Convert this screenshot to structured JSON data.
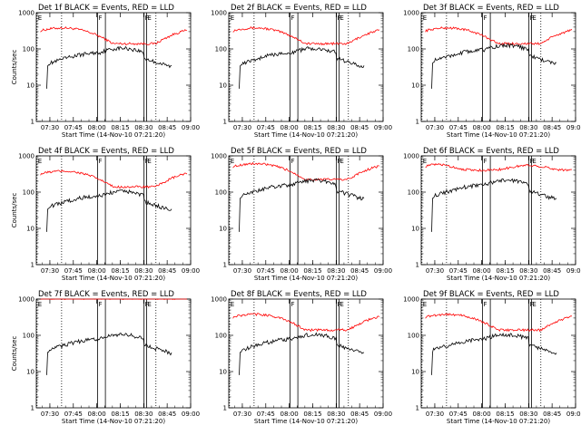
{
  "chart_data": [
    {
      "type": "line",
      "title": "Det 1f BLACK = Events, RED = LLD",
      "variant": 0,
      "xlabel": "Start Time (14-Nov-10 07:21:20)",
      "ylabel": "Counts/sec"
    },
    {
      "type": "line",
      "title": "Det 2f BLACK = Events, RED = LLD",
      "variant": 1,
      "xlabel": "Start Time (14-Nov-10 07:21:20)",
      "ylabel": ""
    },
    {
      "type": "line",
      "title": "Det 3f BLACK = Events, RED = LLD",
      "variant": 2,
      "xlabel": "Start Time (14-Nov-10 07:21:20)",
      "ylabel": ""
    },
    {
      "type": "line",
      "title": "Det 4f BLACK = Events, RED = LLD",
      "variant": 3,
      "xlabel": "Start Time (14-Nov-10 07:21:20)",
      "ylabel": "Counts/sec"
    },
    {
      "type": "line",
      "title": "Det 5f BLACK = Events, RED = LLD",
      "variant": 4,
      "xlabel": "Start Time (14-Nov-10 07:21:20)",
      "ylabel": ""
    },
    {
      "type": "line",
      "title": "Det 6f BLACK = Events, RED = LLD",
      "variant": 5,
      "xlabel": "Start Time (14-Nov-10 07:21:20)",
      "ylabel": ""
    },
    {
      "type": "line",
      "title": "Det 7f BLACK = Events, RED = LLD",
      "variant": 6,
      "xlabel": "Start Time (14-Nov-10 07:21:20)",
      "ylabel": "Counts/sec"
    },
    {
      "type": "line",
      "title": "Det 8f BLACK = Events, RED = LLD",
      "variant": 7,
      "xlabel": "Start Time (14-Nov-10 07:21:20)",
      "ylabel": ""
    },
    {
      "type": "line",
      "title": "Det 9f BLACK = Events, RED = LLD",
      "variant": 8,
      "xlabel": "Start Time (14-Nov-10 07:21:20)",
      "ylabel": ""
    }
  ],
  "shared": {
    "xlim": [
      "07:21:20",
      "09:00"
    ],
    "x_ticks": [
      "07:30",
      "07:45",
      "08:00",
      "08:15",
      "08:30",
      "08:45",
      "09:00"
    ],
    "x_tick_minutes": [
      30,
      45,
      60,
      75,
      90,
      105,
      120
    ],
    "xlim_minutes": [
      21.33,
      120
    ],
    "yscale": "log",
    "ylim": [
      1,
      1000
    ],
    "y_ticks": [
      "1",
      "10",
      "100",
      "1000"
    ],
    "y_tick_values": [
      1,
      10,
      100,
      1000
    ],
    "markers": [
      {
        "label": "E",
        "minute": 21.8,
        "style": "dotted"
      },
      {
        "label": "",
        "minute": 37.5,
        "style": "dotted"
      },
      {
        "label": "F",
        "minute": 60.5,
        "style": "solid"
      },
      {
        "label": "",
        "minute": 65.5,
        "style": "solid"
      },
      {
        "label": "F",
        "minute": 90.2,
        "style": "solid"
      },
      {
        "label": "E",
        "minute": 91.8,
        "style": "solid"
      },
      {
        "label": "",
        "minute": 97.8,
        "style": "dotted"
      }
    ],
    "series_colors": {
      "events": "#000000",
      "lld": "#ff0000"
    }
  }
}
